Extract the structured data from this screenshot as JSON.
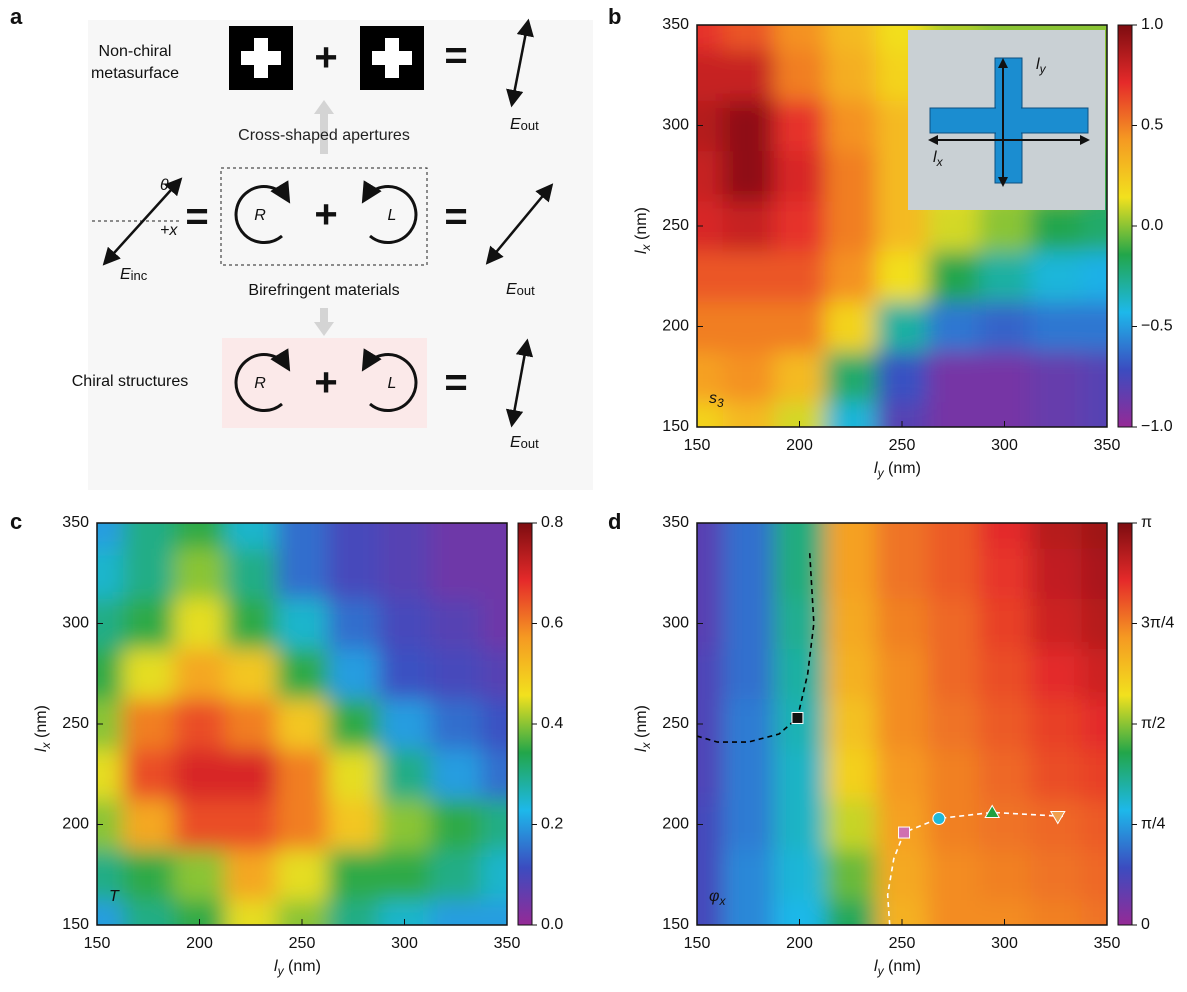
{
  "panel_labels": [
    "a",
    "b",
    "c",
    "d"
  ],
  "diagram": {
    "top_label": [
      "Non-chiral",
      "metasurface"
    ],
    "plus": "+",
    "equals": "=",
    "upper_caption": "Cross-shaped apertures",
    "lower_caption": "Birefringent materials",
    "bottom_label": "Chiral structures",
    "R": "R",
    "L": "L",
    "angle": "θ",
    "axis": "+x",
    "E": "E",
    "inc": "inc",
    "out": "out"
  },
  "chart_data": [
    {
      "type": "heatmap",
      "x": [
        150,
        175,
        200,
        225,
        250,
        275,
        300,
        325,
        350
      ],
      "y": [
        150,
        175,
        200,
        225,
        250,
        275,
        300,
        325,
        350
      ],
      "z": [
        [
          0.2,
          0.3,
          0.1,
          -0.4,
          -0.8,
          -0.9,
          -0.9,
          -0.85,
          -0.8
        ],
        [
          0.4,
          0.45,
          0.3,
          -0.2,
          -0.7,
          -0.9,
          -0.9,
          -0.85,
          -0.8
        ],
        [
          0.5,
          0.5,
          0.5,
          0.2,
          -0.3,
          -0.6,
          -0.65,
          -0.6,
          -0.6
        ],
        [
          0.6,
          0.6,
          0.6,
          0.45,
          0.15,
          -0.15,
          -0.3,
          -0.4,
          -0.45
        ],
        [
          0.75,
          0.8,
          0.7,
          0.5,
          0.3,
          0.1,
          0.0,
          -0.15,
          -0.2
        ],
        [
          0.8,
          0.95,
          0.75,
          0.5,
          0.3,
          0.15,
          0.05,
          0.0,
          -0.1
        ],
        [
          0.85,
          0.95,
          0.7,
          0.45,
          0.3,
          0.15,
          0.05,
          0.0,
          -0.05
        ],
        [
          0.8,
          0.8,
          0.5,
          0.35,
          0.2,
          0.1,
          0.05,
          0.0,
          0.0
        ],
        [
          0.7,
          0.6,
          0.45,
          0.3,
          0.15,
          0.05,
          0.0,
          0.0,
          0.0
        ]
      ],
      "xlim": [
        150,
        350
      ],
      "ylim": [
        150,
        350
      ],
      "xticks": [
        150,
        200,
        250,
        300,
        350
      ],
      "yticks": [
        150,
        200,
        250,
        300,
        350
      ],
      "xlabel": [
        "l",
        "y",
        " (nm)"
      ],
      "ylabel": [
        "l",
        "x",
        " (nm)"
      ],
      "zlim": [
        -1,
        1
      ],
      "zticks": [
        {
          "value": -1,
          "label": "−1.0"
        },
        {
          "value": -0.5,
          "label": "−0.5"
        },
        {
          "value": 0,
          "label": "0.0"
        },
        0.5,
        {
          "value": 1,
          "label": "1.0"
        }
      ],
      "colormap": [
        "#952a96",
        "#3b4cc0",
        "#1db8ea",
        "#22a64a",
        "#f2e11e",
        "#f59a22",
        "#e52a2a",
        "#7d0c10"
      ],
      "panel_text": [
        "s",
        "3"
      ],
      "inset": [
        [
          "l",
          "y"
        ],
        [
          "l",
          "x"
        ]
      ]
    },
    {
      "type": "heatmap",
      "x": [
        150,
        175,
        200,
        225,
        250,
        275,
        300,
        325,
        350
      ],
      "y": [
        150,
        175,
        200,
        225,
        250,
        275,
        300,
        325,
        350
      ],
      "z": [
        [
          0.2,
          0.3,
          0.35,
          0.45,
          0.4,
          0.3,
          0.25,
          0.2,
          0.2
        ],
        [
          0.3,
          0.35,
          0.4,
          0.55,
          0.45,
          0.35,
          0.35,
          0.3,
          0.25
        ],
        [
          0.4,
          0.55,
          0.65,
          0.65,
          0.6,
          0.5,
          0.4,
          0.35,
          0.3
        ],
        [
          0.45,
          0.65,
          0.7,
          0.7,
          0.6,
          0.45,
          0.3,
          0.2,
          0.15
        ],
        [
          0.4,
          0.6,
          0.65,
          0.6,
          0.5,
          0.35,
          0.2,
          0.15,
          0.12
        ],
        [
          0.35,
          0.45,
          0.55,
          0.5,
          0.35,
          0.2,
          0.12,
          0.1,
          0.08
        ],
        [
          0.3,
          0.35,
          0.45,
          0.35,
          0.25,
          0.15,
          0.1,
          0.08,
          0.05
        ],
        [
          0.25,
          0.3,
          0.4,
          0.3,
          0.15,
          0.1,
          0.08,
          0.05,
          0.05
        ],
        [
          0.2,
          0.3,
          0.35,
          0.25,
          0.15,
          0.1,
          0.08,
          0.05,
          0.05
        ]
      ],
      "xlim": [
        150,
        350
      ],
      "ylim": [
        150,
        350
      ],
      "xticks": [
        150,
        200,
        250,
        300,
        350
      ],
      "yticks": [
        150,
        200,
        250,
        300,
        350
      ],
      "xlabel": [
        "l",
        "y",
        " (nm)"
      ],
      "ylabel": [
        "l",
        "x",
        " (nm)"
      ],
      "zlim": [
        0,
        0.8
      ],
      "zticks": [
        {
          "value": 0,
          "label": "0.0"
        },
        0.2,
        0.4,
        0.6,
        0.8
      ],
      "colormap": [
        "#952a96",
        "#3b4cc0",
        "#1db8ea",
        "#22a64a",
        "#f2e11e",
        "#f59a22",
        "#e52a2a",
        "#7d0c10"
      ],
      "panel_text": [
        "T"
      ]
    },
    {
      "type": "heatmap",
      "x": [
        150,
        175,
        200,
        225,
        250,
        275,
        300,
        325,
        350
      ],
      "y": [
        150,
        175,
        200,
        225,
        250,
        275,
        300,
        325,
        350
      ],
      "z": [
        [
          0.4,
          0.7,
          0.9,
          1.3,
          2.1,
          2.3,
          2.3,
          2.35,
          2.4
        ],
        [
          0.4,
          0.7,
          0.95,
          1.5,
          2.15,
          2.3,
          2.35,
          2.4,
          2.45
        ],
        [
          0.4,
          0.65,
          1.0,
          1.7,
          2.2,
          2.35,
          2.4,
          2.45,
          2.5
        ],
        [
          0.35,
          0.65,
          1.0,
          1.9,
          2.25,
          2.35,
          2.45,
          2.55,
          2.6
        ],
        [
          0.35,
          0.65,
          1.05,
          2.0,
          2.3,
          2.4,
          2.5,
          2.6,
          2.7
        ],
        [
          0.35,
          0.6,
          1.1,
          2.1,
          2.3,
          2.45,
          2.55,
          2.7,
          2.8
        ],
        [
          0.3,
          0.6,
          1.15,
          2.15,
          2.35,
          2.45,
          2.6,
          2.8,
          2.9
        ],
        [
          0.3,
          0.6,
          1.2,
          2.2,
          2.4,
          2.5,
          2.65,
          2.85,
          2.95
        ],
        [
          0.3,
          0.6,
          1.2,
          2.2,
          2.4,
          2.5,
          2.7,
          2.9,
          3.0
        ]
      ],
      "xlim": [
        150,
        350
      ],
      "ylim": [
        150,
        350
      ],
      "xticks": [
        150,
        200,
        250,
        300,
        350
      ],
      "yticks": [
        150,
        200,
        250,
        300,
        350
      ],
      "xlabel": [
        "l",
        "y",
        " (nm)"
      ],
      "ylabel": [
        "l",
        "x",
        " (nm)"
      ],
      "zlim": [
        0,
        3.1416
      ],
      "zticks": [
        {
          "value": 0,
          "label": "0"
        },
        {
          "value": 0.7854,
          "label": "π/4"
        },
        {
          "value": 1.5708,
          "label": "π/2"
        },
        {
          "value": 2.3562,
          "label": "3π/4"
        },
        {
          "value": 3.1416,
          "label": "π"
        }
      ],
      "colormap": [
        "#952a96",
        "#3b4cc0",
        "#1db8ea",
        "#22a64a",
        "#f2e11e",
        "#f59a22",
        "#e52a2a",
        "#7d0c10"
      ],
      "panel_text": [
        "φ",
        "x"
      ],
      "curves": [
        {
          "color": "#000000",
          "x": [
            205,
            207,
            204,
            199,
            190,
            175,
            160,
            150
          ],
          "y": [
            335,
            300,
            275,
            253,
            245,
            241,
            241,
            244
          ]
        },
        {
          "color": "#ffffff",
          "x": [
            244,
            243,
            246,
            251,
            268,
            294,
            330
          ],
          "y": [
            150,
            165,
            183,
            196,
            203,
            206,
            204
          ]
        }
      ],
      "markers": [
        {
          "x": 199,
          "y": 253,
          "shape": "square",
          "color": "#111111"
        },
        {
          "x": 251,
          "y": 196,
          "shape": "square",
          "color": "#d070b0"
        },
        {
          "x": 268,
          "y": 203,
          "shape": "circle",
          "color": "#20b8d8"
        },
        {
          "x": 294,
          "y": 206,
          "shape": "triangle",
          "color": "#20a040"
        },
        {
          "x": 326,
          "y": 204,
          "shape": "triangle-down",
          "color": "#f0a050"
        }
      ]
    }
  ]
}
